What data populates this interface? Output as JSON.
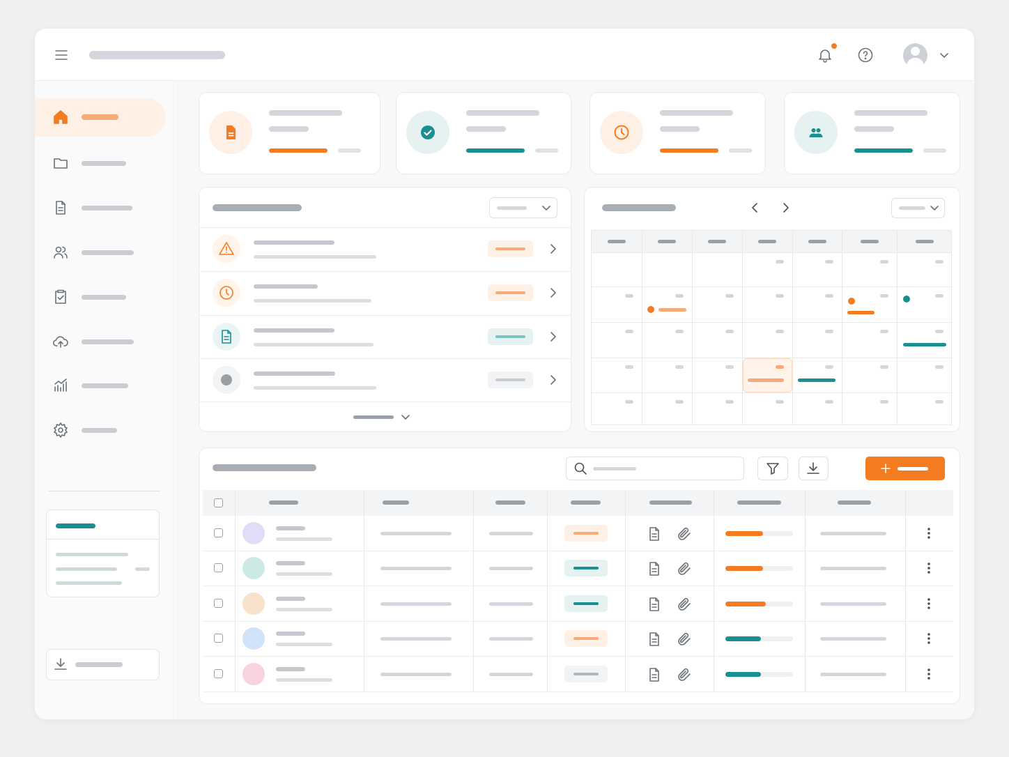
{
  "table": {
    "rows": [
      {
        "progress": 56,
        "color": "#f47b20"
      },
      {
        "progress": 56,
        "color": "#f47b20"
      },
      {
        "progress": 60,
        "color": "#f47b20"
      },
      {
        "progress": 53,
        "color": "#1a8f91"
      },
      {
        "progress": 53,
        "color": "#1a8f91"
      }
    ]
  }
}
